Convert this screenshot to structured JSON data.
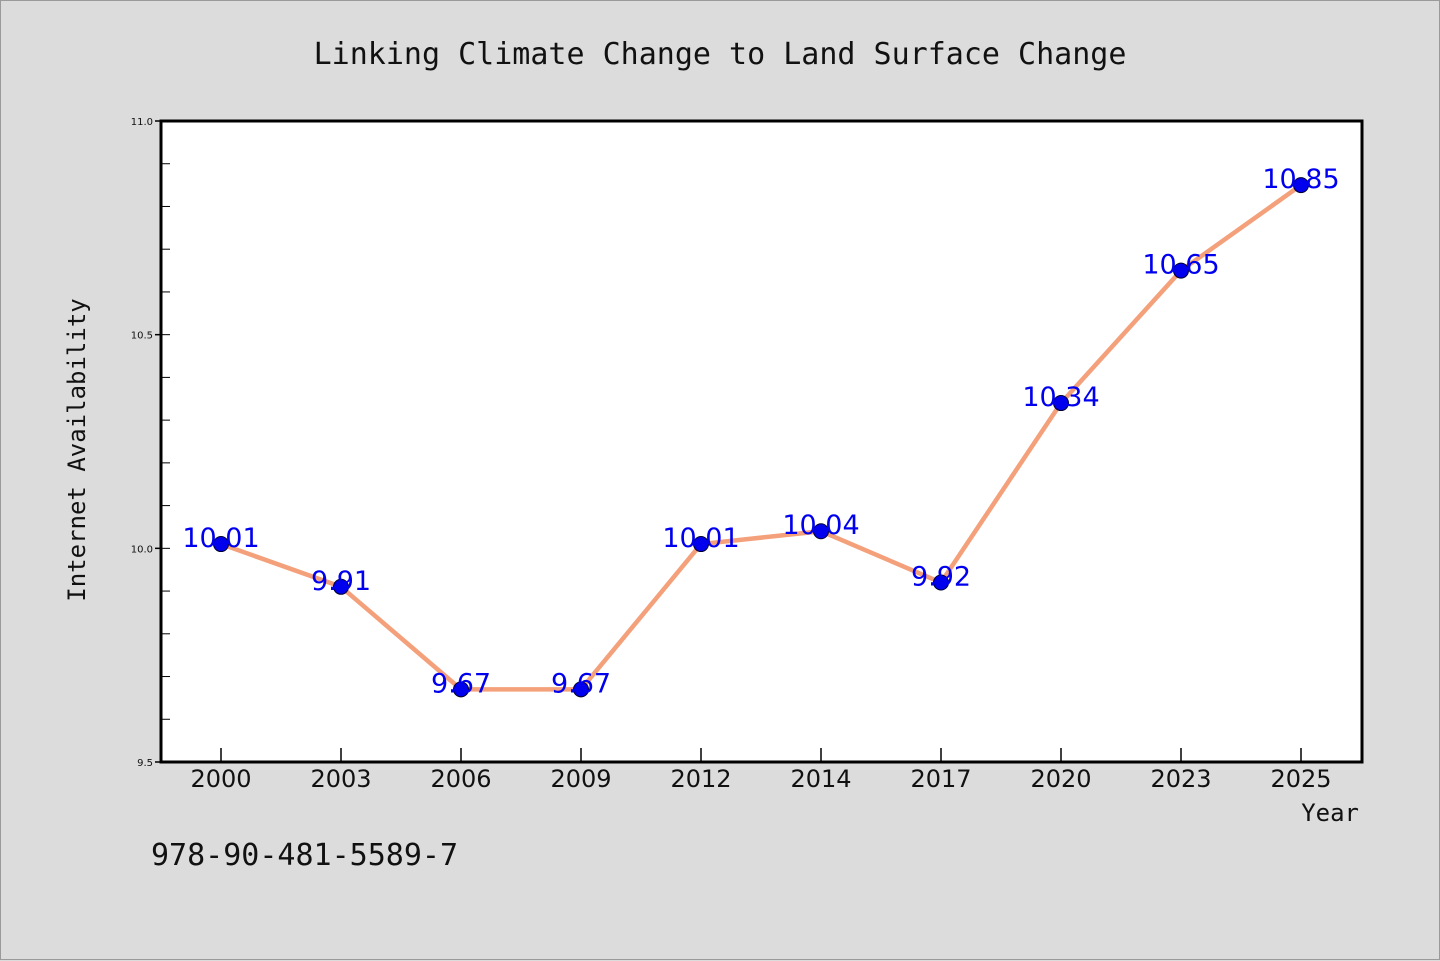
{
  "chart_data": {
    "type": "line",
    "title": "Linking Climate Change to Land Surface Change",
    "xlabel": "Year",
    "ylabel": "Internet Availability",
    "categories": [
      "2000",
      "2003",
      "2006",
      "2009",
      "2012",
      "2014",
      "2017",
      "2020",
      "2023",
      "2025"
    ],
    "values": [
      10.01,
      9.91,
      9.67,
      9.67,
      10.01,
      10.04,
      9.92,
      10.34,
      10.65,
      10.85
    ],
    "value_labels": [
      "10.01",
      "9.91",
      "9.67",
      "9.67",
      "10.01",
      "10.04",
      "9.92",
      "10.34",
      "10.65",
      "10.85"
    ],
    "ylim": [
      9.5,
      11.0
    ],
    "yticks": [
      "9.5",
      "10.0",
      "10.5",
      "11.0"
    ],
    "grid": false,
    "legend": "none",
    "colors": {
      "line": "#f4a07a",
      "marker": "#0000ee",
      "label": "#0000ee",
      "background": "#dcdcdc",
      "plot_background": "#ffffff"
    }
  },
  "isbn": "978-90-481-5589-7"
}
